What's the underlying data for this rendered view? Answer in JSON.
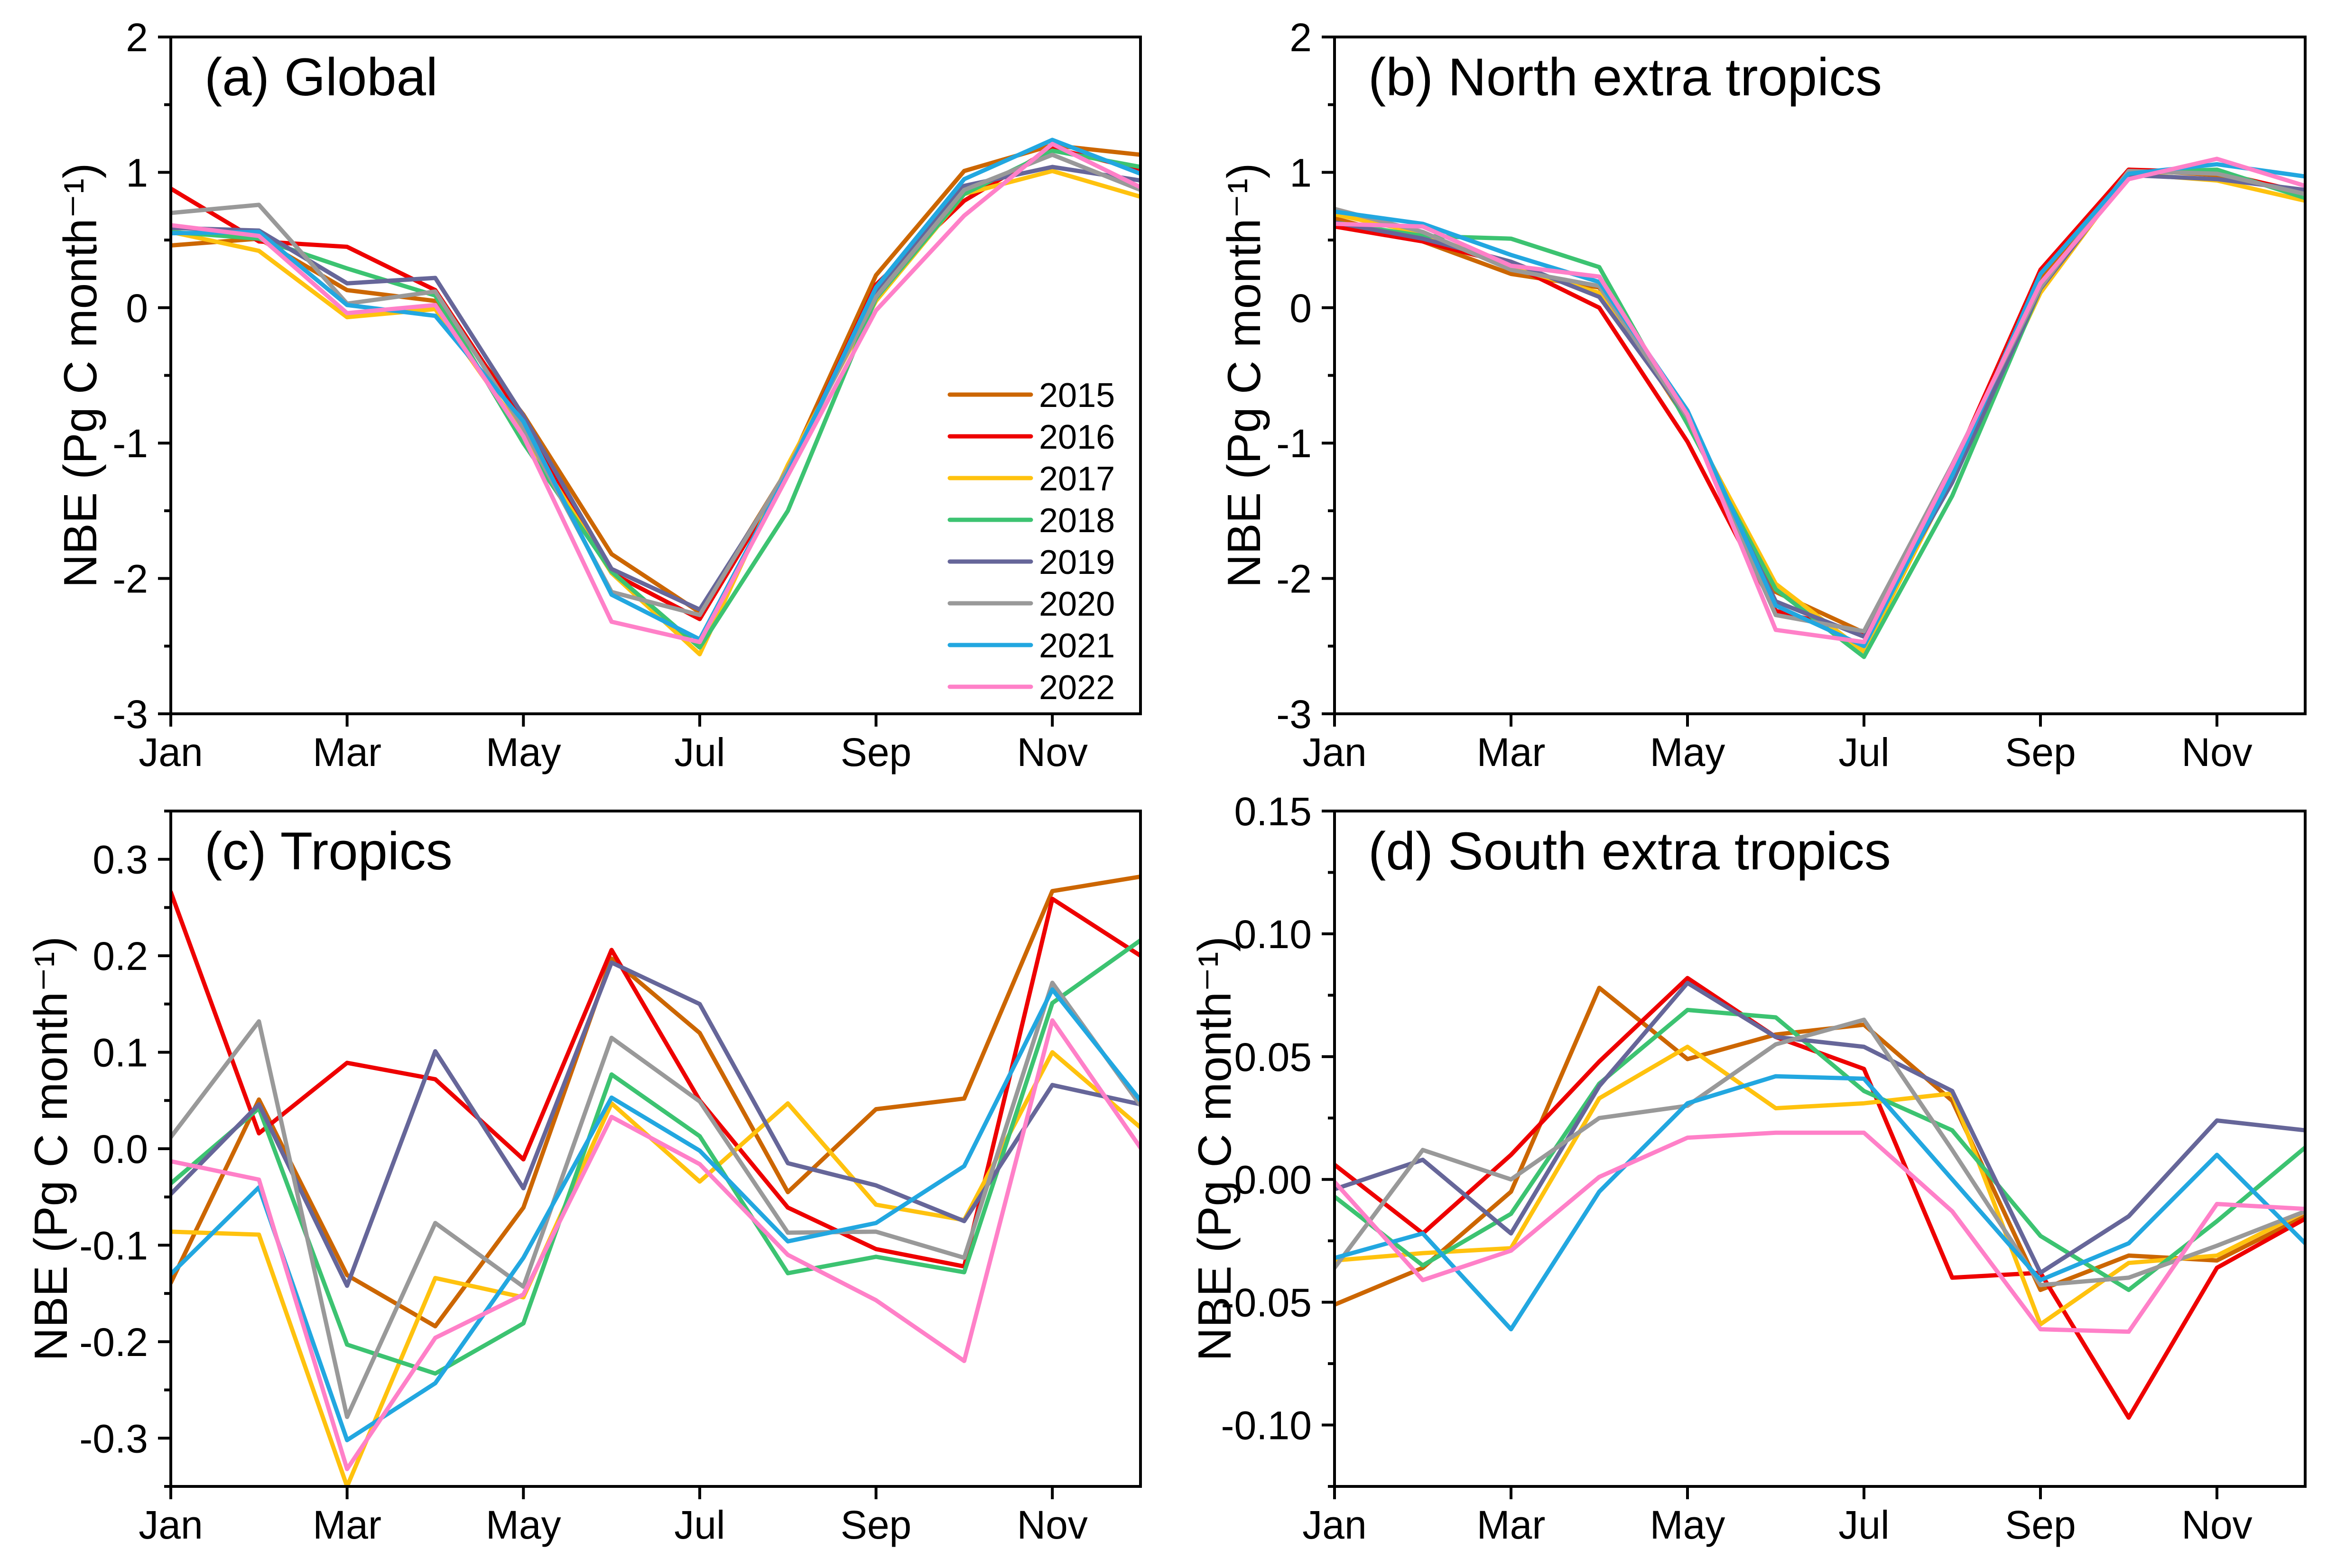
{
  "chart_data": [
    {
      "id": "a",
      "type": "line",
      "title": "(a) Global",
      "xlabel": "",
      "ylabel": "NBE (Pg C month⁻¹)",
      "x": [
        "Jan",
        "Feb",
        "Mar",
        "Apr",
        "May",
        "Jun",
        "Jul",
        "Aug",
        "Sep",
        "Oct",
        "Nov",
        "Dec"
      ],
      "xticks": [
        "Jan",
        "Mar",
        "May",
        "Jul",
        "Sep",
        "Nov"
      ],
      "ylim": [
        -3,
        2
      ],
      "yticks": [
        {
          "value": 2,
          "label": "2"
        },
        {
          "value": 1,
          "label": "1"
        },
        {
          "value": 0,
          "label": "0"
        },
        {
          "value": -1,
          "label": "-1"
        },
        {
          "value": -2,
          "label": "-2"
        },
        {
          "value": -3,
          "label": "-3"
        }
      ],
      "y_minor_step": 0.5,
      "grid": false,
      "legend": {
        "show": true,
        "position": "right"
      },
      "series": [
        {
          "name": "2015",
          "color": "#CC6600",
          "values": [
            0.46,
            0.51,
            0.13,
            0.05,
            -0.79,
            -1.82,
            -2.25,
            -1.19,
            0.24,
            1.01,
            1.2,
            1.13
          ]
        },
        {
          "name": "2016",
          "color": "#EE0000",
          "values": [
            0.88,
            0.49,
            0.45,
            0.13,
            -0.85,
            -1.96,
            -2.3,
            -1.22,
            0.17,
            0.79,
            1.18,
            1.02
          ]
        },
        {
          "name": "2017",
          "color": "#FFC20E",
          "values": [
            0.56,
            0.42,
            -0.07,
            -0.01,
            -0.93,
            -1.96,
            -2.56,
            -1.16,
            0.05,
            0.84,
            1.01,
            0.82
          ]
        },
        {
          "name": "2018",
          "color": "#3CC371",
          "values": [
            0.56,
            0.51,
            0.29,
            0.09,
            -1.0,
            -1.95,
            -2.51,
            -1.5,
            0.07,
            0.84,
            1.16,
            1.04
          ]
        },
        {
          "name": "2019",
          "color": "#666699",
          "values": [
            0.59,
            0.57,
            0.18,
            0.22,
            -0.8,
            -1.93,
            -2.23,
            -1.21,
            0.11,
            0.9,
            1.04,
            0.94
          ]
        },
        {
          "name": "2020",
          "color": "#999999",
          "values": [
            0.7,
            0.76,
            0.03,
            0.12,
            -0.89,
            -2.1,
            -2.27,
            -1.19,
            0.08,
            0.87,
            1.13,
            0.87
          ]
        },
        {
          "name": "2021",
          "color": "#22A7E0",
          "values": [
            0.55,
            0.56,
            0.02,
            -0.06,
            -0.84,
            -2.12,
            -2.45,
            -1.22,
            0.15,
            0.95,
            1.24,
            0.99
          ]
        },
        {
          "name": "2022",
          "color": "#FF80C8",
          "values": [
            0.61,
            0.53,
            -0.04,
            0.02,
            -0.95,
            -2.32,
            -2.47,
            -1.24,
            -0.02,
            0.68,
            1.21,
            0.89
          ]
        }
      ]
    },
    {
      "id": "b",
      "type": "line",
      "title": "(b) North extra tropics",
      "xlabel": "",
      "ylabel": "NBE (Pg C month⁻¹)",
      "x": [
        "Jan",
        "Feb",
        "Mar",
        "Apr",
        "May",
        "Jun",
        "Jul",
        "Aug",
        "Sep",
        "Oct",
        "Nov",
        "Dec"
      ],
      "xticks": [
        "Jan",
        "Mar",
        "May",
        "Jul",
        "Sep",
        "Nov"
      ],
      "ylim": [
        -3,
        2
      ],
      "yticks": [
        {
          "value": 2,
          "label": "2"
        },
        {
          "value": 1,
          "label": "1"
        },
        {
          "value": 0,
          "label": "0"
        },
        {
          "value": -1,
          "label": "-1"
        },
        {
          "value": -2,
          "label": "-2"
        },
        {
          "value": -3,
          "label": "-3"
        }
      ],
      "y_minor_step": 0.5,
      "grid": false,
      "legend": {
        "show": false
      },
      "series": [
        {
          "name": "2015",
          "color": "#CC6600",
          "values": [
            0.66,
            0.49,
            0.25,
            0.15,
            -0.84,
            -2.1,
            -2.4,
            -1.19,
            0.21,
            1.02,
            0.98,
            0.85
          ]
        },
        {
          "name": "2016",
          "color": "#EE0000",
          "values": [
            0.6,
            0.49,
            0.32,
            0.0,
            -0.99,
            -2.24,
            -2.4,
            -1.19,
            0.28,
            1.02,
            1.0,
            0.85
          ]
        },
        {
          "name": "2017",
          "color": "#FFC20E",
          "values": [
            0.69,
            0.55,
            0.3,
            0.11,
            -0.82,
            -2.04,
            -2.54,
            -1.26,
            0.11,
            0.99,
            0.94,
            0.79
          ]
        },
        {
          "name": "2018",
          "color": "#3CC371",
          "values": [
            0.63,
            0.53,
            0.51,
            0.3,
            -0.86,
            -2.08,
            -2.58,
            -1.39,
            0.14,
            1.0,
            1.02,
            0.81
          ]
        },
        {
          "name": "2019",
          "color": "#666699",
          "values": [
            0.63,
            0.51,
            0.34,
            0.08,
            -0.81,
            -2.17,
            -2.43,
            -1.29,
            0.14,
            0.98,
            0.95,
            0.87
          ]
        },
        {
          "name": "2020",
          "color": "#999999",
          "values": [
            0.73,
            0.56,
            0.28,
            0.16,
            -0.81,
            -2.27,
            -2.39,
            -1.16,
            0.15,
            1.01,
            0.99,
            0.84
          ]
        },
        {
          "name": "2021",
          "color": "#22A7E0",
          "values": [
            0.71,
            0.62,
            0.39,
            0.19,
            -0.76,
            -2.2,
            -2.5,
            -1.24,
            0.25,
            0.99,
            1.06,
            0.97
          ]
        },
        {
          "name": "2022",
          "color": "#FF80C8",
          "values": [
            0.62,
            0.6,
            0.31,
            0.23,
            -0.79,
            -2.38,
            -2.47,
            -1.17,
            0.18,
            0.95,
            1.1,
            0.9
          ]
        }
      ]
    },
    {
      "id": "c",
      "type": "line",
      "title": "(c) Tropics",
      "xlabel": "",
      "ylabel": "NBE (Pg C month⁻¹)",
      "x": [
        "Jan",
        "Feb",
        "Mar",
        "Apr",
        "May",
        "Jun",
        "Jul",
        "Aug",
        "Sep",
        "Oct",
        "Nov",
        "Dec"
      ],
      "xticks": [
        "Jan",
        "Mar",
        "May",
        "Jul",
        "Sep",
        "Nov"
      ],
      "ylim": [
        -0.35,
        0.35
      ],
      "yticks": [
        {
          "value": 0.3,
          "label": "0.3"
        },
        {
          "value": 0.2,
          "label": "0.2"
        },
        {
          "value": 0.1,
          "label": "0.1"
        },
        {
          "value": 0.0,
          "label": "0.0"
        },
        {
          "value": -0.1,
          "label": "-0.1"
        },
        {
          "value": -0.2,
          "label": "-0.2"
        },
        {
          "value": -0.3,
          "label": "-0.3"
        }
      ],
      "y_minor_step": 0.05,
      "grid": false,
      "legend": {
        "show": false
      },
      "series": [
        {
          "name": "2015",
          "color": "#CC6600",
          "values": [
            -0.139,
            0.051,
            -0.131,
            -0.184,
            -0.061,
            0.197,
            0.12,
            -0.045,
            0.041,
            0.052,
            0.267,
            0.282
          ]
        },
        {
          "name": "2016",
          "color": "#EE0000",
          "values": [
            0.266,
            0.016,
            0.089,
            0.072,
            -0.011,
            0.206,
            0.05,
            -0.061,
            -0.104,
            -0.122,
            0.259,
            0.2
          ]
        },
        {
          "name": "2017",
          "color": "#FFC20E",
          "values": [
            -0.086,
            -0.089,
            -0.35,
            -0.134,
            -0.154,
            0.047,
            -0.034,
            0.047,
            -0.058,
            -0.074,
            0.1,
            0.022
          ]
        },
        {
          "name": "2018",
          "color": "#3CC371",
          "values": [
            -0.036,
            0.042,
            -0.203,
            -0.233,
            -0.181,
            0.077,
            0.013,
            -0.129,
            -0.112,
            -0.128,
            0.151,
            0.216
          ]
        },
        {
          "name": "2019",
          "color": "#666699",
          "values": [
            -0.047,
            0.046,
            -0.142,
            0.101,
            -0.041,
            0.193,
            0.15,
            -0.015,
            -0.038,
            -0.075,
            0.066,
            0.046
          ]
        },
        {
          "name": "2020",
          "color": "#999999",
          "values": [
            0.012,
            0.132,
            -0.278,
            -0.077,
            -0.143,
            0.115,
            0.049,
            -0.087,
            -0.086,
            -0.113,
            0.172,
            0.045
          ]
        },
        {
          "name": "2021",
          "color": "#22A7E0",
          "values": [
            -0.13,
            -0.04,
            -0.302,
            -0.243,
            -0.113,
            0.053,
            -0.002,
            -0.096,
            -0.077,
            -0.018,
            0.165,
            0.05
          ]
        },
        {
          "name": "2022",
          "color": "#FF80C8",
          "values": [
            -0.013,
            -0.032,
            -0.332,
            -0.196,
            -0.151,
            0.033,
            -0.016,
            -0.11,
            -0.157,
            -0.22,
            0.133,
            0.001
          ]
        }
      ]
    },
    {
      "id": "d",
      "type": "line",
      "title": "(d) South extra tropics",
      "xlabel": "",
      "ylabel": "NBE (Pg C month⁻¹)",
      "x": [
        "Jan",
        "Feb",
        "Mar",
        "Apr",
        "May",
        "Jun",
        "Jul",
        "Aug",
        "Sep",
        "Oct",
        "Nov",
        "Dec"
      ],
      "xticks": [
        "Jan",
        "Mar",
        "May",
        "Jul",
        "Sep",
        "Nov"
      ],
      "ylim": [
        -0.125,
        0.15
      ],
      "yticks": [
        {
          "value": 0.15,
          "label": "0.15"
        },
        {
          "value": 0.1,
          "label": "0.10"
        },
        {
          "value": 0.05,
          "label": "0.05"
        },
        {
          "value": 0.0,
          "label": "0.00"
        },
        {
          "value": -0.05,
          "label": "-0.05"
        },
        {
          "value": -0.1,
          "label": "-0.10"
        }
      ],
      "y_minor_step": 0.025,
      "grid": false,
      "legend": {
        "show": false
      },
      "series": [
        {
          "name": "2015",
          "color": "#CC6600",
          "values": [
            -0.051,
            -0.036,
            -0.005,
            0.078,
            0.049,
            0.059,
            0.063,
            0.032,
            -0.045,
            -0.031,
            -0.033,
            -0.015
          ]
        },
        {
          "name": "2016",
          "color": "#EE0000",
          "values": [
            0.006,
            -0.022,
            0.01,
            0.048,
            0.082,
            0.058,
            0.045,
            -0.04,
            -0.038,
            -0.097,
            -0.036,
            -0.016
          ]
        },
        {
          "name": "2017",
          "color": "#FFC20E",
          "values": [
            -0.033,
            -0.03,
            -0.028,
            0.033,
            0.054,
            0.029,
            0.031,
            0.035,
            -0.059,
            -0.034,
            -0.031,
            -0.013
          ]
        },
        {
          "name": "2018",
          "color": "#3CC371",
          "values": [
            -0.007,
            -0.035,
            -0.014,
            0.039,
            0.069,
            0.066,
            0.036,
            0.02,
            -0.023,
            -0.045,
            -0.017,
            0.013
          ]
        },
        {
          "name": "2019",
          "color": "#666699",
          "values": [
            -0.004,
            0.008,
            -0.022,
            0.038,
            0.08,
            0.058,
            0.054,
            0.036,
            -0.038,
            -0.015,
            0.024,
            0.02
          ]
        },
        {
          "name": "2020",
          "color": "#999999",
          "values": [
            -0.036,
            0.012,
            0.0,
            0.025,
            0.03,
            0.055,
            0.065,
            0.012,
            -0.043,
            -0.04,
            -0.027,
            -0.013
          ]
        },
        {
          "name": "2021",
          "color": "#22A7E0",
          "values": [
            -0.032,
            -0.022,
            -0.061,
            -0.005,
            0.031,
            0.042,
            0.041,
            0.0,
            -0.041,
            -0.026,
            0.01,
            -0.026
          ]
        },
        {
          "name": "2022",
          "color": "#FF80C8",
          "values": [
            -0.001,
            -0.041,
            -0.029,
            0.001,
            0.017,
            0.019,
            0.019,
            -0.013,
            -0.061,
            -0.062,
            -0.01,
            -0.012
          ]
        }
      ]
    }
  ]
}
